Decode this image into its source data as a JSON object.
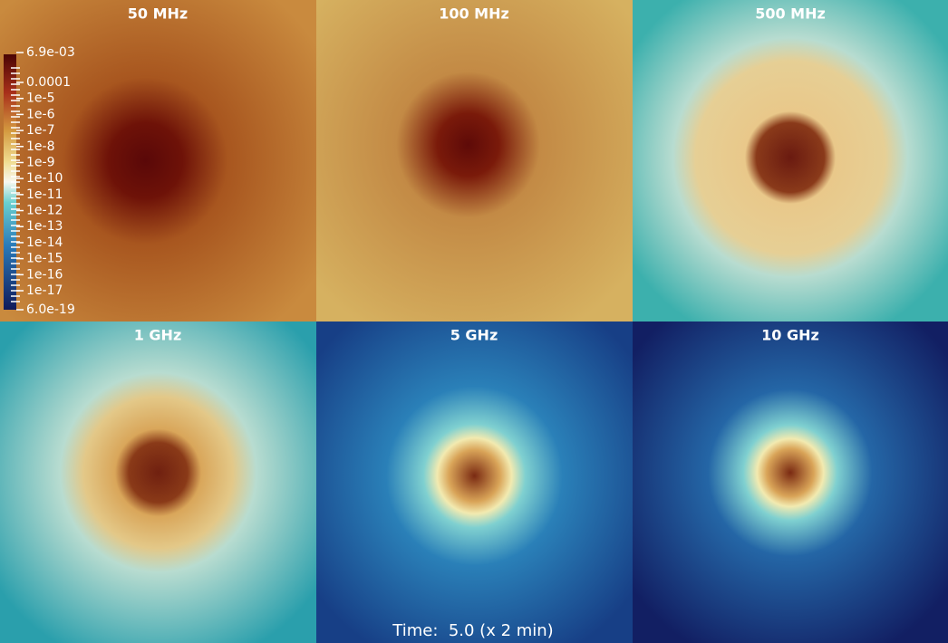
{
  "panels": [
    {
      "title": "50 MHz"
    },
    {
      "title": "100 MHz"
    },
    {
      "title": "500 MHz"
    },
    {
      "title": "1 GHz"
    },
    {
      "title": "5 GHz"
    },
    {
      "title": "10 GHz"
    }
  ],
  "colorbar": {
    "labels": [
      "6.9e-03",
      "0.0001",
      "1e-5",
      "1e-6",
      "1e-7",
      "1e-8",
      "1e-9",
      "1e-10",
      "1e-11",
      "1e-12",
      "1e-13",
      "1e-14",
      "1e-15",
      "1e-16",
      "1e-17",
      "6.0e-19"
    ]
  },
  "time_label": "Time:  5.0 (x 2 min)"
}
